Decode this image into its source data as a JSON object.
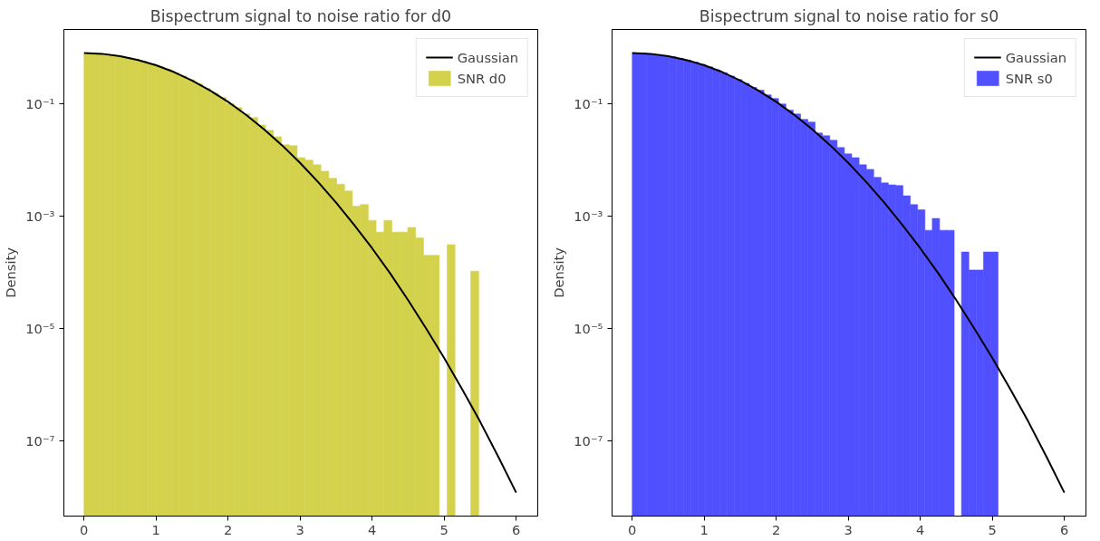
{
  "chart_data": [
    {
      "type": "histogram",
      "title": "Bispectrum signal to noise ratio for d0",
      "ylabel": "Density",
      "log": "y",
      "grid": false,
      "legend": "top right",
      "xlim": [
        -0.28,
        6.3
      ],
      "ylim": [
        4.6e-09,
        2.1
      ],
      "xticks": [
        0,
        1,
        2,
        3,
        4,
        5,
        6
      ],
      "yticks": [
        {
          "value": 0.1,
          "label": "10⁻¹"
        },
        {
          "value": 0.001,
          "label": "10⁻³"
        },
        {
          "value": 1e-05,
          "label": "10⁻⁵"
        },
        {
          "value": 1e-07,
          "label": "10⁻⁷"
        }
      ],
      "series": [
        {
          "type": "line",
          "name": "Gaussian",
          "color": "#000000",
          "x": [
            0,
            0.25,
            0.5,
            0.75,
            1,
            1.25,
            1.5,
            1.75,
            2,
            2.25,
            2.5,
            2.75,
            3,
            3.25,
            3.5,
            3.75,
            4,
            4.25,
            4.5,
            4.75,
            5,
            5.25,
            5.5,
            5.75,
            6
          ],
          "values": [
            0.798,
            0.774,
            0.704,
            0.601,
            0.484,
            0.366,
            0.259,
            0.172,
            0.108,
            0.0633,
            0.035,
            0.0182,
            0.00886,
            0.00405,
            0.00174,
            0.0007,
            0.000268,
            9.6e-05,
            3.2e-05,
            1e-05,
            3e-06,
            8.3e-07,
            2.2e-07,
            5.3e-08,
            1.2e-08
          ]
        },
        {
          "name": "SNR d0",
          "color": "#d4d24d",
          "bins": [
            0,
            0.11,
            0.219,
            0.329,
            0.438,
            0.548,
            0.658,
            0.767,
            0.877,
            0.986,
            1.096,
            1.206,
            1.315,
            1.425,
            1.534,
            1.644,
            1.754,
            1.863,
            1.973,
            2.082,
            2.192,
            2.302,
            2.411,
            2.521,
            2.63,
            2.74,
            2.85,
            2.959,
            3.069,
            3.178,
            3.288,
            3.398,
            3.507,
            3.617,
            3.726,
            3.836,
            3.946,
            4.055,
            4.165,
            4.274,
            4.384,
            4.494,
            4.603,
            4.713,
            4.822,
            4.932,
            5.042,
            5.151,
            5.261,
            5.37,
            5.48
          ],
          "values": [
            0.797,
            0.787,
            0.769,
            0.742,
            0.706,
            0.665,
            0.619,
            0.569,
            0.517,
            0.464,
            0.412,
            0.361,
            0.312,
            0.267,
            0.226,
            0.188,
            0.155,
            0.13,
            0.1,
            0.0855,
            0.0659,
            0.0568,
            0.0417,
            0.0337,
            0.0259,
            0.0186,
            0.0179,
            0.011,
            0.0099,
            0.0082,
            0.0063,
            0.0047,
            0.0037,
            0.0028,
            0.0015,
            0.0016,
            0.00084,
            0.00052,
            0.00084,
            0.00052,
            0.00052,
            0.00063,
            0.00041,
            0.0002,
            0.0002,
            null,
            0.00031,
            null,
            null,
            0.000105
          ]
        }
      ]
    },
    {
      "type": "histogram",
      "title": "Bispectrum signal to noise ratio for s0",
      "ylabel": "Density",
      "log": "y",
      "grid": false,
      "legend": "top right",
      "xlim": [
        -0.28,
        6.3
      ],
      "ylim": [
        4.6e-09,
        2.1
      ],
      "xticks": [
        0,
        1,
        2,
        3,
        4,
        5,
        6
      ],
      "yticks": [
        {
          "value": 0.1,
          "label": "10⁻¹"
        },
        {
          "value": 0.001,
          "label": "10⁻³"
        },
        {
          "value": 1e-05,
          "label": "10⁻⁵"
        },
        {
          "value": 1e-07,
          "label": "10⁻⁷"
        }
      ],
      "series": [
        {
          "type": "line",
          "name": "Gaussian",
          "color": "#000000",
          "x": [
            0,
            0.25,
            0.5,
            0.75,
            1,
            1.25,
            1.5,
            1.75,
            2,
            2.25,
            2.5,
            2.75,
            3,
            3.25,
            3.5,
            3.75,
            4,
            4.25,
            4.5,
            4.75,
            5,
            5.25,
            5.5,
            5.75,
            6
          ],
          "values": [
            0.798,
            0.774,
            0.704,
            0.601,
            0.484,
            0.366,
            0.259,
            0.172,
            0.108,
            0.0633,
            0.035,
            0.0182,
            0.00886,
            0.00405,
            0.00174,
            0.0007,
            0.000268,
            9.6e-05,
            3.2e-05,
            1e-05,
            3e-06,
            8.3e-07,
            2.2e-07,
            5.3e-08,
            1.2e-08
          ]
        },
        {
          "name": "SNR s0",
          "color": "#5050ff",
          "bins": [
            0,
            0.102,
            0.203,
            0.305,
            0.406,
            0.508,
            0.61,
            0.711,
            0.813,
            0.914,
            1.016,
            1.118,
            1.219,
            1.321,
            1.422,
            1.524,
            1.626,
            1.727,
            1.829,
            1.93,
            2.032,
            2.134,
            2.235,
            2.337,
            2.438,
            2.54,
            2.642,
            2.743,
            2.845,
            2.946,
            3.048,
            3.15,
            3.251,
            3.353,
            3.454,
            3.556,
            3.658,
            3.759,
            3.861,
            3.962,
            4.064,
            4.166,
            4.267,
            4.369,
            4.47,
            4.572,
            4.674,
            4.775,
            4.877,
            4.978,
            5.08
          ],
          "values": [
            0.797,
            0.789,
            0.773,
            0.75,
            0.719,
            0.684,
            0.644,
            0.598,
            0.55,
            0.502,
            0.452,
            0.404,
            0.357,
            0.311,
            0.269,
            0.231,
            0.195,
            0.174,
            0.144,
            0.124,
            0.099,
            0.0774,
            0.0659,
            0.0527,
            0.0471,
            0.0301,
            0.0269,
            0.0224,
            0.0166,
            0.0128,
            0.011,
            0.0082,
            0.0068,
            0.0049,
            0.0039,
            0.0036,
            0.0035,
            0.0023,
            0.0016,
            0.0013,
            0.00056,
            0.00091,
            0.00056,
            0.00056,
            null,
            0.00023,
            0.00011,
            0.00011,
            0.00023,
            0.00023
          ]
        }
      ]
    }
  ]
}
